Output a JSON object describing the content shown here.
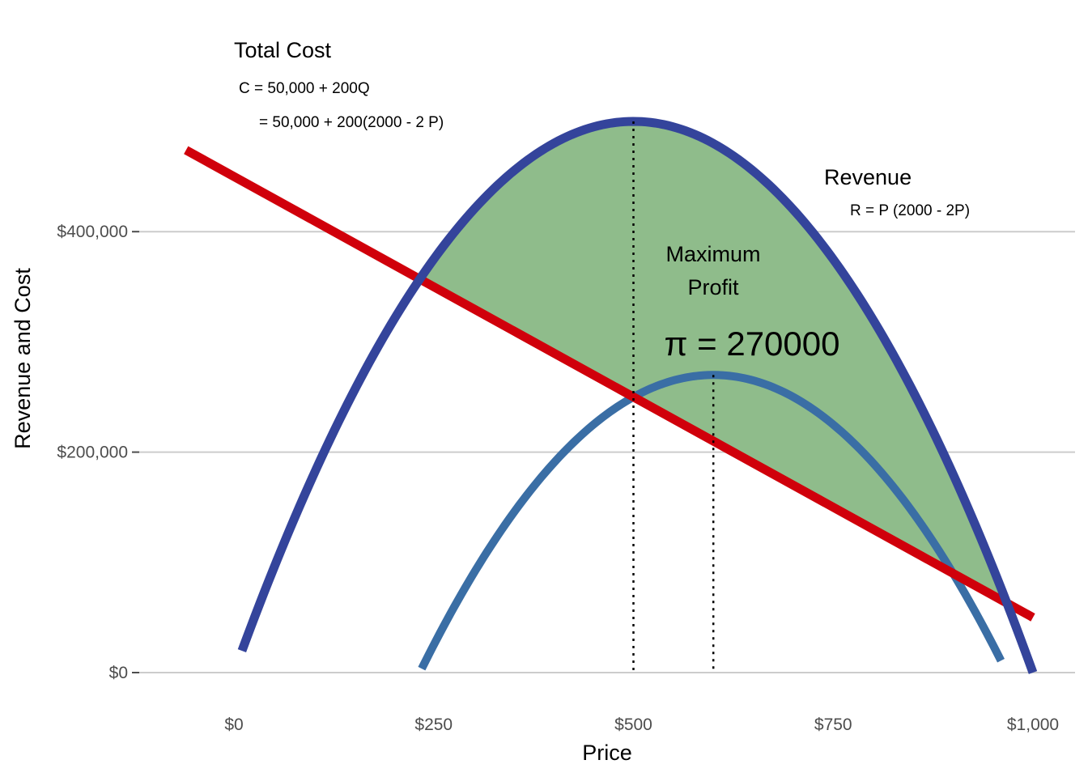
{
  "chart_data": {
    "type": "line",
    "xlabel": "Price",
    "ylabel": "Revenue and Cost",
    "x_ticks": [
      {
        "value": 0,
        "label": "$0"
      },
      {
        "value": 250,
        "label": "$250"
      },
      {
        "value": 500,
        "label": "$500"
      },
      {
        "value": 750,
        "label": "$750"
      },
      {
        "value": 1000,
        "label": "$1,000"
      }
    ],
    "y_ticks": [
      {
        "value": 0,
        "label": "$0"
      },
      {
        "value": 200000,
        "label": "$200,000"
      },
      {
        "value": 400000,
        "label": "$400,000"
      }
    ],
    "xlim": [
      -80,
      1050
    ],
    "ylim": [
      -20000,
      520000
    ],
    "grid": "horizontal",
    "series": [
      {
        "name": "Revenue",
        "color": "#34449b",
        "formula": "R = P (2000 - 2P)",
        "x": [
          10,
          100,
          200,
          300,
          400,
          500,
          600,
          700,
          800,
          900,
          1000
        ],
        "y": [
          19800,
          180000,
          320000,
          420000,
          480000,
          500000,
          480000,
          420000,
          320000,
          180000,
          0
        ]
      },
      {
        "name": "Total Cost",
        "color": "#d0000b",
        "formula": "C = 50,000 + 200Q",
        "x": [
          -60,
          1000
        ],
        "y": [
          474000,
          50000
        ]
      },
      {
        "color": "#3a6ea5",
        "x": [
          235,
          300,
          400,
          500,
          600,
          700,
          800,
          900,
          960
        ],
        "y": [
          2900,
          120000,
          220000,
          250000,
          270000,
          250000,
          190000,
          90000,
          18000
        ]
      }
    ],
    "profit_region": {
      "color": "#8fbc8b",
      "x_start": 236.1,
      "x_end": 963.9
    },
    "reference_lines": [
      {
        "x": 500,
        "y_end": 500000
      },
      {
        "x": 600,
        "y_end": 270000
      }
    ]
  },
  "annotations": {
    "total_cost_title": "Total Cost",
    "total_cost_eq1": "C = 50,000 + 200Q",
    "total_cost_eq2": "= 50,000 + 200(2000 - 2 P)",
    "revenue_title": "Revenue",
    "revenue_eq": "R = P (2000 - 2P)",
    "max_profit_line1": "Maximum",
    "max_profit_line2": "Profit",
    "profit_value": "π = 270000"
  }
}
